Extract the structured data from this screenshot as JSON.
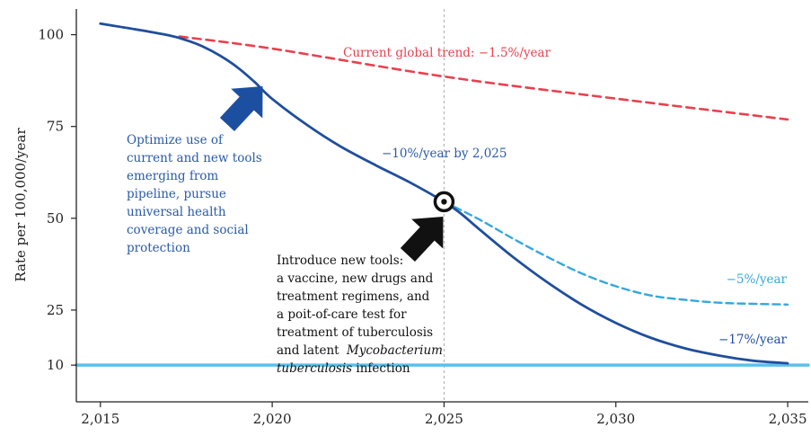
{
  "chart_data": {
    "type": "line",
    "ylabel": "Rate per 100,000/year",
    "xlabel": "",
    "xlim": [
      2014.3,
      2035.6
    ],
    "ylim": [
      0,
      107
    ],
    "x_ticks": [
      2015,
      2020,
      2025,
      2030,
      2035
    ],
    "x_tick_labels": [
      "2,015",
      "2,020",
      "2,025",
      "2,030",
      "2,035"
    ],
    "y_ticks": [
      10,
      25,
      50,
      75,
      100
    ],
    "y_tick_labels": [
      "10",
      "25",
      "50",
      "75",
      "100"
    ],
    "grid": false,
    "colors": {
      "main": "#1f4e9c",
      "trend": "#e8414f",
      "alt": "#35a8db",
      "target": "#5bc0eb",
      "guide": "#888888",
      "arrow_blue": "#1c4fa0",
      "arrow_black": "#111111",
      "text_main": "#2a5aa8",
      "text_black": "#111111"
    },
    "series": [
      {
        "key": "main",
        "style": "solid",
        "x": [
          2015,
          2016,
          2017,
          2017.5,
          2018,
          2018.5,
          2019,
          2019.5,
          2020,
          2021,
          2022,
          2023,
          2024,
          2025,
          2025.5,
          2026,
          2027,
          2028,
          2029,
          2030,
          2031,
          2032,
          2033,
          2034,
          2035
        ],
        "y": [
          103,
          101.5,
          99.8,
          98.5,
          96.7,
          94.2,
          91,
          87,
          82.5,
          75.5,
          69.5,
          64.5,
          59.8,
          54.5,
          51.2,
          47.2,
          39.5,
          32.6,
          26.5,
          21.5,
          17.5,
          14.6,
          12.6,
          11.2,
          10.5
        ]
      },
      {
        "key": "trend",
        "style": "dashed",
        "x": [
          2017.3,
          2020,
          2025,
          2030,
          2035
        ],
        "y": [
          99.5,
          96.2,
          88.6,
          82.6,
          76.9
        ]
      },
      {
        "key": "alt",
        "style": "dashed",
        "x": [
          2025,
          2026,
          2027,
          2028,
          2029,
          2030,
          2031,
          2032,
          2033,
          2034,
          2035
        ],
        "y": [
          54.5,
          49.8,
          44.5,
          39.5,
          35,
          31.5,
          29,
          27.8,
          27,
          26.7,
          26.5
        ]
      },
      {
        "key": "target",
        "style": "solid",
        "x": [
          2014.3,
          2035.6
        ],
        "y": [
          10,
          10
        ]
      }
    ],
    "milestone": {
      "x": 2025,
      "y": 54.5
    },
    "annotations": {
      "trend_label": "Current global trend: −1.5%/year",
      "main_rate": "−10%/year by 2,025",
      "alt_rate": "−5%/year",
      "fast_rate": "−17%/year",
      "optimize": [
        "Optimize use of",
        "current and new tools",
        "emerging from",
        "pipeline, pursue",
        "universal health",
        "coverage and social",
        "protection"
      ],
      "introduce": [
        "Introduce new tools:",
        "a vaccine, new drugs and",
        "treatment regimens, and",
        "a poit-of-care test for",
        "treatment of tuberculosis",
        "and latent"
      ],
      "introduce_italic_1": "Mycobacterium",
      "introduce_italic_2": "tuberculosis",
      "introduce_tail": " infection"
    }
  }
}
